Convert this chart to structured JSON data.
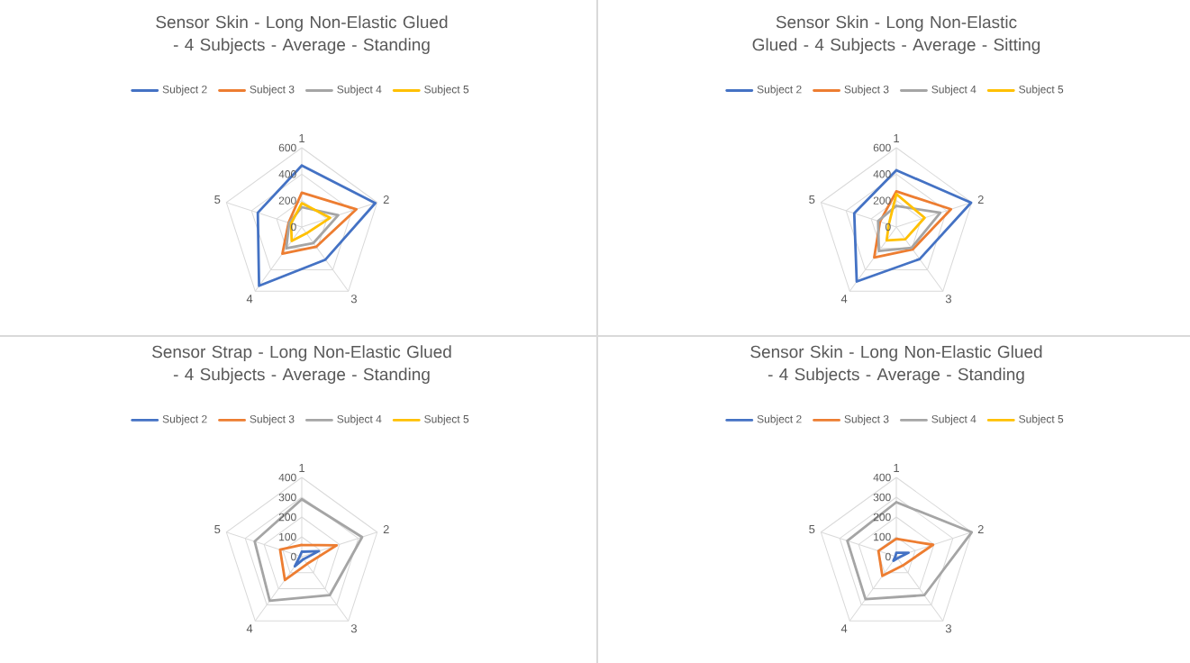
{
  "chart_data": [
    {
      "type": "radar",
      "title": "Sensor Skin - Long Non-Elastic Glued - 4 Subjects - Average - Standing",
      "categories": [
        "1",
        "2",
        "3",
        "4",
        "5"
      ],
      "ylim": [
        0,
        600
      ],
      "yticks": [
        0,
        200,
        400,
        600
      ],
      "grid": true,
      "legend": "top",
      "series": [
        {
          "name": "Subject 2",
          "color": "#4472c4",
          "values": [
            465,
            585,
            305,
            550,
            350
          ]
        },
        {
          "name": "Subject 3",
          "color": "#ed7d31",
          "values": [
            260,
            435,
            185,
            250,
            105
          ]
        },
        {
          "name": "Subject 4",
          "color": "#a5a5a5",
          "values": [
            150,
            290,
            150,
            200,
            100
          ]
        },
        {
          "name": "Subject 5",
          "color": "#ffc000",
          "values": [
            180,
            225,
            60,
            130,
            85
          ]
        }
      ]
    },
    {
      "type": "radar",
      "title": "Sensor Skin - Long Non-Elastic Glued - 4 Subjects - Average - Sitting",
      "categories": [
        "1",
        "2",
        "3",
        "4",
        "5"
      ],
      "ylim": [
        0,
        600
      ],
      "yticks": [
        0,
        200,
        400,
        600
      ],
      "grid": true,
      "legend": "top",
      "series": [
        {
          "name": "Subject 2",
          "color": "#4472c4",
          "values": [
            430,
            595,
            300,
            510,
            335
          ]
        },
        {
          "name": "Subject 3",
          "color": "#ed7d31",
          "values": [
            270,
            435,
            210,
            285,
            130
          ]
        },
        {
          "name": "Subject 4",
          "color": "#a5a5a5",
          "values": [
            160,
            350,
            195,
            225,
            145
          ]
        },
        {
          "name": "Subject 5",
          "color": "#ffc000",
          "values": [
            250,
            225,
            115,
            125,
            60
          ]
        }
      ]
    },
    {
      "type": "radar",
      "title": "Sensor Strap - Long Non-Elastic Glued - 4 Subjects - Average - Standing",
      "categories": [
        "1",
        "2",
        "3",
        "4",
        "5"
      ],
      "ylim": [
        0,
        400
      ],
      "yticks": [
        0,
        100,
        200,
        300,
        400
      ],
      "grid": true,
      "legend": "top",
      "series": [
        {
          "name": "Subject 2",
          "color": "#4472c4",
          "values": [
            25,
            90,
            15,
            60,
            10
          ]
        },
        {
          "name": "Subject 3",
          "color": "#ed7d31",
          "values": [
            60,
            185,
            45,
            145,
            115
          ]
        },
        {
          "name": "Subject 4",
          "color": "#a5a5a5",
          "values": [
            290,
            320,
            240,
            275,
            250
          ]
        },
        {
          "name": "Subject 5",
          "color": "#ffc000",
          "values": [
            null,
            null,
            null,
            null,
            null
          ]
        }
      ]
    },
    {
      "type": "radar",
      "title": "Sensor Skin - Long Non-Elastic Glued - 4 Subjects - Average - Standing",
      "categories": [
        "1",
        "2",
        "3",
        "4",
        "5"
      ],
      "ylim": [
        0,
        400
      ],
      "yticks": [
        0,
        100,
        200,
        300,
        400
      ],
      "grid": true,
      "legend": "top",
      "series": [
        {
          "name": "Subject 2",
          "color": "#4472c4",
          "values": [
            20,
            65,
            10,
            25,
            5
          ]
        },
        {
          "name": "Subject 3",
          "color": "#ed7d31",
          "values": [
            90,
            195,
            55,
            120,
            95
          ]
        },
        {
          "name": "Subject 4",
          "color": "#a5a5a5",
          "values": [
            275,
            400,
            240,
            265,
            260
          ]
        },
        {
          "name": "Subject 5",
          "color": "#ffc000",
          "values": [
            null,
            null,
            null,
            null,
            null
          ]
        }
      ]
    }
  ]
}
